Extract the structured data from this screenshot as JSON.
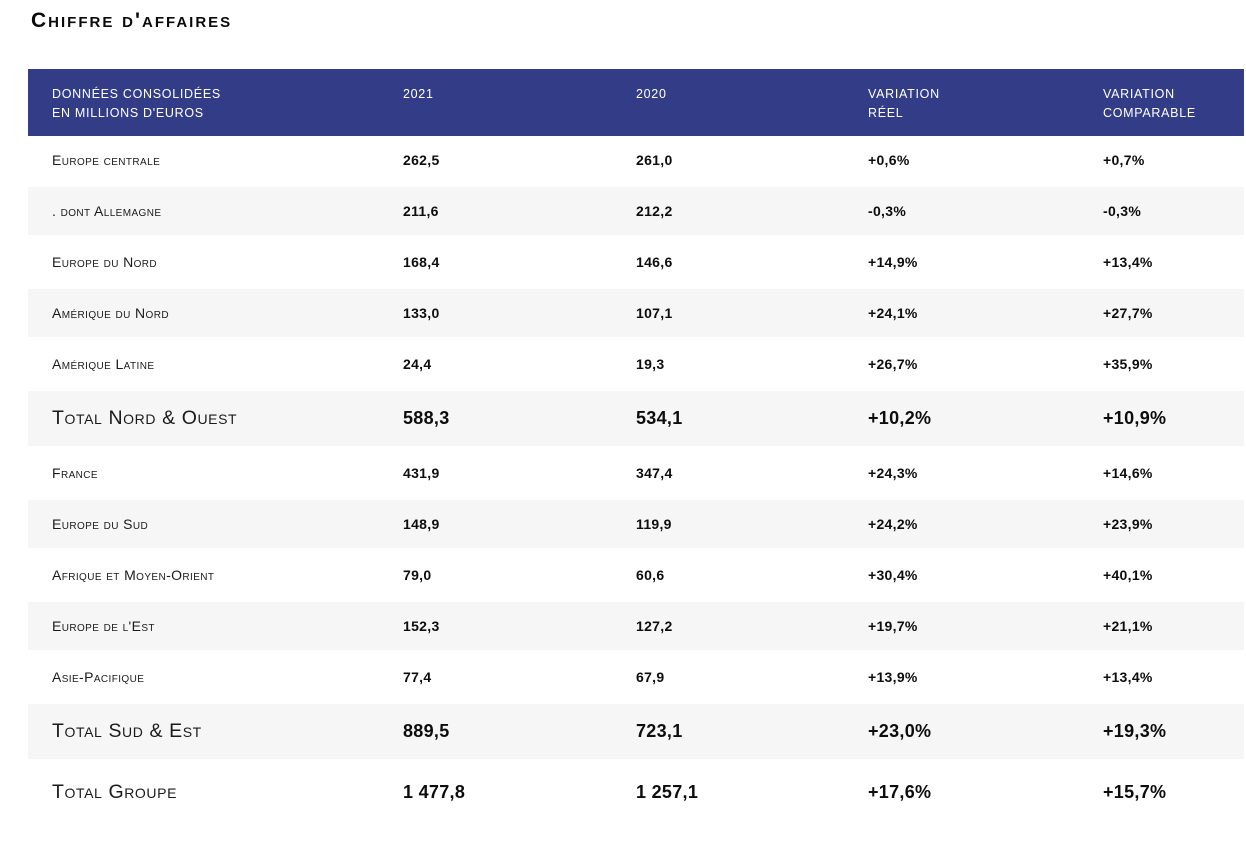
{
  "page": {
    "title": "Chiffre d'affaires"
  },
  "theme": {
    "header_bg": "#333D87",
    "header_text": "#FFFFFF",
    "stripe_bg": "#F6F6F6",
    "body_bg": "#FFFFFF",
    "text": "#111111"
  },
  "table": {
    "columns": {
      "c0": "DONNÉES CONSOLIDÉES\nEN MILLIONS D'EUROS",
      "c1": "2021",
      "c2": "2020",
      "c3": "VARIATION\nRÉEL",
      "c4": "VARIATION\nCOMPARABLE"
    },
    "rows": [
      {
        "label": "Europe centrale",
        "v2021": "262,5",
        "v2020": "261,0",
        "var_reel": "+0,6%",
        "var_comp": "+0,7%"
      },
      {
        "label": ". dont Allemagne",
        "v2021": "211,6",
        "v2020": "212,2",
        "var_reel": "-0,3%",
        "var_comp": "-0,3%"
      },
      {
        "label": "Europe du Nord",
        "v2021": "168,4",
        "v2020": "146,6",
        "var_reel": "+14,9%",
        "var_comp": "+13,4%"
      },
      {
        "label": "Amérique du Nord",
        "v2021": "133,0",
        "v2020": "107,1",
        "var_reel": "+24,1%",
        "var_comp": "+27,7%"
      },
      {
        "label": "Amérique Latine",
        "v2021": "24,4",
        "v2020": "19,3",
        "var_reel": "+26,7%",
        "var_comp": "+35,9%"
      },
      {
        "label": "Total Nord & Ouest",
        "v2021": "588,3",
        "v2020": "534,1",
        "var_reel": "+10,2%",
        "var_comp": "+10,9%"
      },
      {
        "label": "France",
        "v2021": "431,9",
        "v2020": "347,4",
        "var_reel": "+24,3%",
        "var_comp": "+14,6%"
      },
      {
        "label": "Europe du Sud",
        "v2021": "148,9",
        "v2020": "119,9",
        "var_reel": "+24,2%",
        "var_comp": "+23,9%"
      },
      {
        "label": "Afrique et Moyen-Orient",
        "v2021": "79,0",
        "v2020": "60,6",
        "var_reel": "+30,4%",
        "var_comp": "+40,1%"
      },
      {
        "label": "Europe de l'Est",
        "v2021": "152,3",
        "v2020": "127,2",
        "var_reel": "+19,7%",
        "var_comp": "+21,1%"
      },
      {
        "label": "Asie-Pacifique",
        "v2021": "77,4",
        "v2020": "67,9",
        "var_reel": "+13,9%",
        "var_comp": "+13,4%"
      },
      {
        "label": "Total Sud & Est",
        "v2021": "889,5",
        "v2020": "723,1",
        "var_reel": "+23,0%",
        "var_comp": "+19,3%"
      },
      {
        "label": "Total Groupe",
        "v2021": "1 477,8",
        "v2020": "1 257,1",
        "var_reel": "+17,6%",
        "var_comp": "+15,7%"
      }
    ]
  }
}
